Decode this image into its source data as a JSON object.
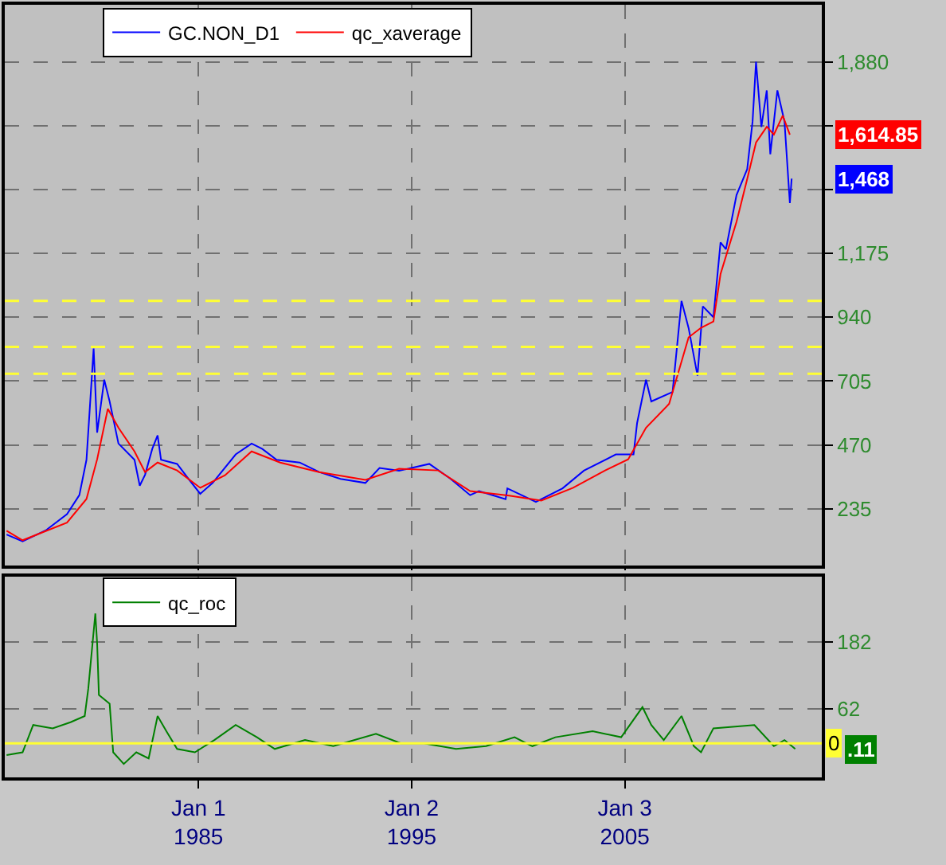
{
  "chart_data": [
    {
      "type": "line",
      "xlim": [
        "1975-12",
        "2014-04"
      ],
      "xticks": [
        {
          "value": "1985-01-01",
          "label": null
        },
        {
          "value": "1995-01-02",
          "label": null
        },
        {
          "value": "2005-01-03",
          "label": null
        }
      ],
      "ylim": [
        26,
        2090
      ],
      "yticks": [
        235,
        470,
        705,
        940,
        {
          "value": 1175,
          "label": "1,175"
        },
        {
          "value": 1410,
          "label": null
        },
        {
          "value": 1645,
          "label": null
        },
        {
          "value": 1880,
          "label": "1,880"
        }
      ],
      "tick_labels": "y",
      "grid": true,
      "legend": "top left",
      "series": [
        {
          "name": "GC.NON_D1",
          "color": "#0000ff",
          "x": [
            "1976-01",
            "1976-10",
            "1977-11",
            "1978-11",
            "1979-06",
            "1979-10",
            "1980-02",
            "1980-04",
            "1980-08",
            "1980-11",
            "1981-04",
            "1982-01",
            "1982-04",
            "1982-07",
            "1982-11",
            "1983-02",
            "1983-04",
            "1984-01",
            "1984-08",
            "1985-02",
            "1985-09",
            "1986-10",
            "1987-07",
            "1988-01",
            "1988-09",
            "1989-10",
            "1990-09",
            "1991-09",
            "1992-11",
            "1993-07",
            "1994-06",
            "1995-11",
            "1996-11",
            "1997-10",
            "1998-03",
            "1999-06",
            "1999-07",
            "2000-11",
            "2002-02",
            "2003-02",
            "2004-08",
            "2005-06",
            "2005-08",
            "2006-01",
            "2006-04",
            "2007-04",
            "2007-09",
            "2008-01",
            "2008-06",
            "2008-09",
            "2009-03",
            "2009-07",
            "2009-10",
            "2010-04",
            "2010-10",
            "2011-01",
            "2011-03",
            "2011-06",
            "2011-09",
            "2011-11",
            "2012-03",
            "2012-07",
            "2012-10",
            "2012-11"
          ],
          "values": [
            140,
            115,
            155,
            215,
            285,
            415,
            825,
            515,
            710,
            630,
            475,
            415,
            320,
            360,
            455,
            505,
            415,
            400,
            340,
            290,
            330,
            435,
            475,
            455,
            415,
            405,
            370,
            345,
            330,
            385,
            375,
            400,
            345,
            285,
            300,
            270,
            310,
            260,
            310,
            375,
            435,
            435,
            550,
            710,
            630,
            665,
            1000,
            900,
            725,
            980,
            940,
            1215,
            1190,
            1390,
            1485,
            1660,
            1880,
            1640,
            1775,
            1540,
            1775,
            1660,
            1360,
            1450
          ]
        },
        {
          "name": "qc_xaverage",
          "color": "#ff0000",
          "x": [
            "1976-01",
            "1976-10",
            "1978-11",
            "1979-10",
            "1980-04",
            "1980-10",
            "1981-04",
            "1982-01",
            "1982-07",
            "1983-02",
            "1984-01",
            "1985-02",
            "1986-04",
            "1987-07",
            "1988-11",
            "1990-09",
            "1992-11",
            "1994-06",
            "1996-04",
            "1997-10",
            "1999-08",
            "2001-02",
            "2002-08",
            "2004-02",
            "2005-03",
            "2006-01",
            "2007-02",
            "2008-01",
            "2008-08",
            "2009-03",
            "2009-07",
            "2010-04",
            "2010-10",
            "2011-03",
            "2011-09",
            "2012-01",
            "2012-06",
            "2012-10"
          ],
          "values": [
            154,
            119,
            184,
            271,
            417,
            603,
            533,
            446,
            370,
            405,
            376,
            312,
            358,
            446,
            405,
            370,
            341,
            382,
            376,
            300,
            283,
            265,
            312,
            376,
            417,
            533,
            621,
            866,
            901,
            924,
            1099,
            1291,
            1449,
            1583,
            1641,
            1612,
            1682,
            1612
          ]
        }
      ],
      "ref_lines": [
        {
          "axis": "y",
          "value": 1000,
          "color": "#ffff33",
          "line_style": "dashed"
        },
        {
          "axis": "y",
          "value": 831,
          "color": "#ffff33",
          "line_style": "dashed"
        },
        {
          "axis": "y",
          "value": 732,
          "color": "#ffff33",
          "line_style": "dashed"
        }
      ],
      "annotations": [
        "1,468",
        "1,614.85"
      ]
    },
    {
      "type": "line",
      "xlim": [
        "1975-12",
        "2014-04"
      ],
      "xticks": [
        {
          "value": "1985-01-01",
          "label": "Jan 1\n1985"
        },
        {
          "value": "1995-01-02",
          "label": "Jan 2\n1995"
        },
        {
          "value": "2005-01-03",
          "label": "Jan 3\n2005"
        }
      ],
      "ylim": [
        -61,
        299
      ],
      "yticks": [
        62,
        182
      ],
      "grid": true,
      "legend": "top left",
      "series": [
        {
          "name": "qc_roc",
          "color": "#008000",
          "x": [
            "1976-01",
            "1976-10",
            "1977-04",
            "1978-03",
            "1979-01",
            "1979-09",
            "1979-11",
            "1980-03",
            "1980-04",
            "1980-05",
            "1980-11",
            "1981-01",
            "1981-07",
            "1982-02",
            "1982-09",
            "1983-02",
            "1983-07",
            "1984-01",
            "1984-11",
            "1985-10",
            "1986-10",
            "1987-10",
            "1988-08",
            "1990-01",
            "1991-05",
            "1993-05",
            "1994-07",
            "1995-08",
            "1997-02",
            "1998-07",
            "1999-11",
            "2000-09",
            "2001-10",
            "2003-07",
            "2004-11",
            "2005-11",
            "2006-04",
            "2006-11",
            "2007-09",
            "2008-04",
            "2008-08",
            "2009-03",
            "2011-02",
            "2012-01",
            "2012-07",
            "2013-01"
          ],
          "values": [
            -21,
            -16,
            33,
            27,
            38,
            49,
            98,
            233,
            179,
            87,
            71,
            -16,
            -37,
            -16,
            -27,
            49,
            22,
            -10,
            -16,
            6,
            33,
            11,
            -10,
            6,
            -5,
            17,
            0,
            0,
            -10,
            -5,
            11,
            -5,
            11,
            22,
            11,
            65,
            33,
            6,
            49,
            -5,
            -16,
            27,
            33,
            -5,
            6,
            -10
          ]
        }
      ],
      "ref_lines": [
        {
          "axis": "y",
          "value": 0,
          "label": "0",
          "color": "#ffff33",
          "line_style": "solid"
        }
      ],
      "annotations": [
        ".11"
      ]
    }
  ]
}
